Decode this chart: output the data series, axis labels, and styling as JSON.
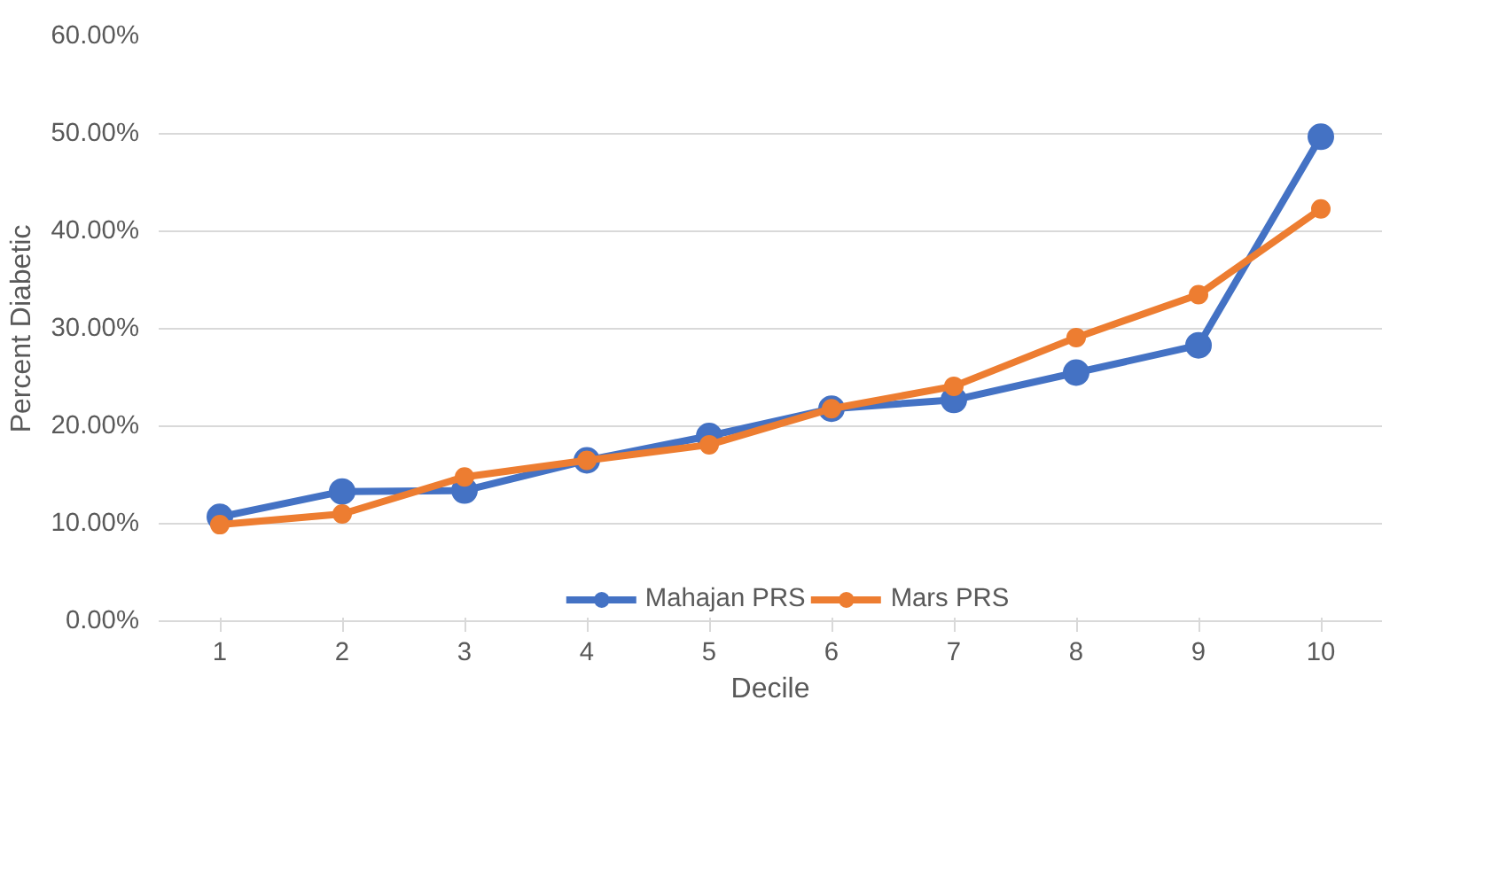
{
  "chart_data": {
    "type": "line",
    "xlabel": "Decile",
    "ylabel": "Percent Diabetic",
    "categories": [
      "1",
      "2",
      "3",
      "4",
      "5",
      "6",
      "7",
      "8",
      "9",
      "10"
    ],
    "series": [
      {
        "name": "Mahajan PRS",
        "color": "#4472c4",
        "values": [
          10.7,
          13.3,
          13.4,
          16.5,
          19.0,
          21.8,
          22.7,
          25.5,
          28.3,
          49.7
        ]
      },
      {
        "name": "Mars PRS",
        "color": "#ed7d31",
        "values": [
          9.9,
          11.0,
          14.8,
          16.5,
          18.1,
          21.8,
          24.1,
          29.1,
          33.5,
          42.3
        ]
      }
    ],
    "ylim": [
      0,
      60
    ],
    "yticks": [
      {
        "value": 0,
        "label": "0.00%"
      },
      {
        "value": 10,
        "label": "10.00%"
      },
      {
        "value": 20,
        "label": "20.00%"
      },
      {
        "value": 30,
        "label": "30.00%"
      },
      {
        "value": 40,
        "label": "40.00%"
      },
      {
        "value": 50,
        "label": "50.00%"
      },
      {
        "value": 60,
        "label": "60.00%"
      }
    ],
    "grid": "y",
    "legend": "bottom",
    "marker": "circle",
    "line_style": "solid"
  }
}
